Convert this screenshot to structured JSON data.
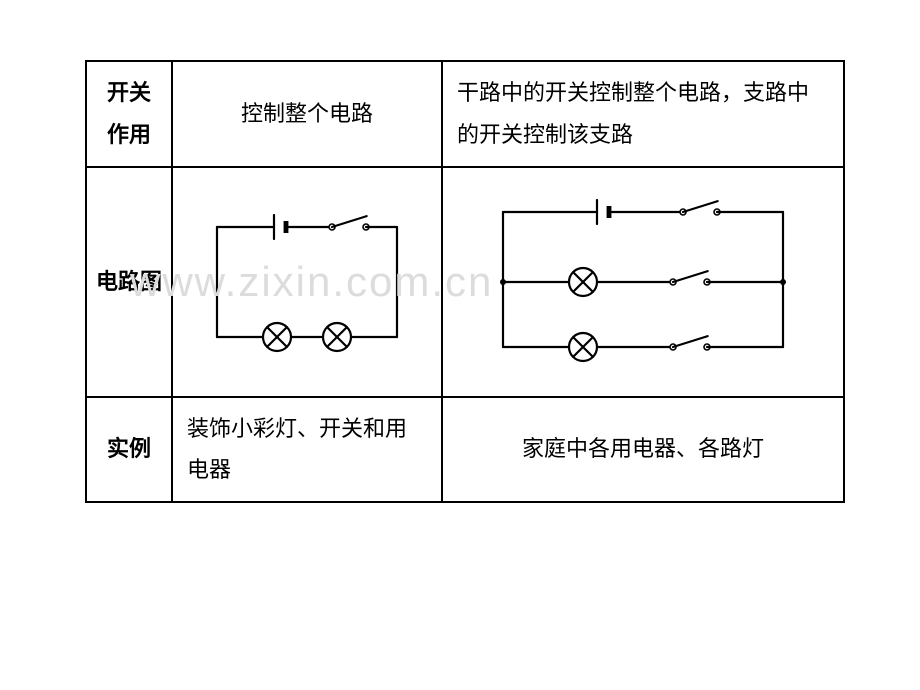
{
  "table": {
    "rows": [
      {
        "header": "开关\n作用",
        "series_text": "控制整个电路",
        "parallel_text": "干路中的开关控制整个电路，支路中的开关控制该支路"
      },
      {
        "header": "电路图"
      },
      {
        "header": "实例",
        "series_text": "装饰小彩灯、开关和用电器",
        "parallel_text": "家庭中各用电器、各路灯"
      }
    ]
  },
  "style": {
    "stroke_color": "#000000",
    "stroke_width": 2.2,
    "lamp_radius": 14,
    "battery_long": 24,
    "battery_short": 12,
    "switch_len": 34,
    "switch_node_r": 3
  },
  "watermark": "www.zixin.com.cn"
}
